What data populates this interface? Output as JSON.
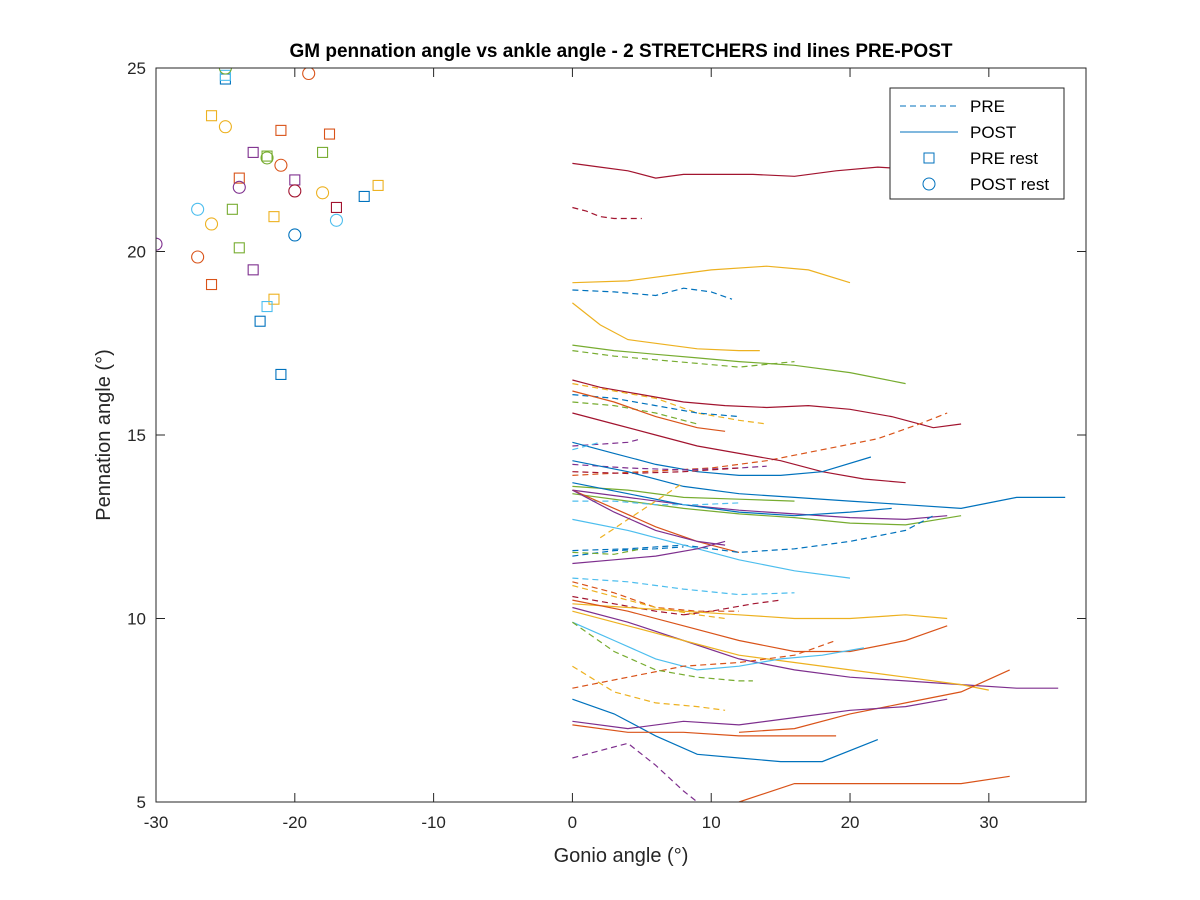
{
  "chart_data": {
    "type": "line",
    "title": "GM pennation angle vs ankle angle - 2 STRETCHERS ind lines PRE-POST",
    "xlabel": "Gonio angle (°)",
    "ylabel": "Pennation angle (°)",
    "xlim": [
      -30,
      37
    ],
    "ylim": [
      5,
      25
    ],
    "x_ticks": [
      -30,
      -20,
      -10,
      0,
      10,
      20,
      30
    ],
    "y_ticks": [
      5,
      10,
      15,
      20,
      25
    ],
    "x_tick_labels": [
      "-30",
      "-20",
      "-10",
      "0",
      "10",
      "20",
      "30"
    ],
    "y_tick_labels": [
      "5",
      "10",
      "15",
      "20",
      "25"
    ],
    "grid": false,
    "legend": {
      "placement": "top-right",
      "entries": [
        {
          "label": "PRE",
          "style": "dashed-line"
        },
        {
          "label": "POST",
          "style": "solid-line"
        },
        {
          "label": "PRE rest",
          "style": "square-marker"
        },
        {
          "label": "POST rest",
          "style": "circle-marker"
        }
      ]
    },
    "colors": {
      "blue": "#0072BD",
      "orange": "#D95319",
      "yellow": "#EDB120",
      "purple": "#7E2F8E",
      "green": "#77AC30",
      "cyan": "#4DBEEE",
      "darkred": "#A2142F"
    },
    "rest_points": {
      "pre": [
        {
          "x": -25,
          "y": 24.7,
          "c": "blue"
        },
        {
          "x": -25,
          "y": 24.8,
          "c": "cyan"
        },
        {
          "x": -26,
          "y": 23.7,
          "c": "yellow"
        },
        {
          "x": -21,
          "y": 23.3,
          "c": "orange"
        },
        {
          "x": -17.5,
          "y": 23.2,
          "c": "orange"
        },
        {
          "x": -23,
          "y": 22.7,
          "c": "purple"
        },
        {
          "x": -22,
          "y": 22.6,
          "c": "green"
        },
        {
          "x": -18,
          "y": 22.7,
          "c": "green"
        },
        {
          "x": -24,
          "y": 22.0,
          "c": "orange"
        },
        {
          "x": -20,
          "y": 21.95,
          "c": "purple"
        },
        {
          "x": -14,
          "y": 21.8,
          "c": "yellow"
        },
        {
          "x": -15,
          "y": 21.5,
          "c": "blue"
        },
        {
          "x": -17,
          "y": 21.2,
          "c": "darkred"
        },
        {
          "x": -24.5,
          "y": 21.15,
          "c": "green"
        },
        {
          "x": -21.5,
          "y": 20.95,
          "c": "yellow"
        },
        {
          "x": -24,
          "y": 20.1,
          "c": "green"
        },
        {
          "x": -23,
          "y": 19.5,
          "c": "purple"
        },
        {
          "x": -26,
          "y": 19.1,
          "c": "orange"
        },
        {
          "x": -21.5,
          "y": 18.7,
          "c": "yellow"
        },
        {
          "x": -22,
          "y": 18.5,
          "c": "cyan"
        },
        {
          "x": -22.5,
          "y": 18.1,
          "c": "blue"
        },
        {
          "x": -21,
          "y": 16.65,
          "c": "blue"
        }
      ],
      "post": [
        {
          "x": -25,
          "y": 25.0,
          "c": "green"
        },
        {
          "x": -19,
          "y": 24.85,
          "c": "orange"
        },
        {
          "x": -25,
          "y": 23.4,
          "c": "yellow"
        },
        {
          "x": -22,
          "y": 22.55,
          "c": "green"
        },
        {
          "x": -21,
          "y": 22.35,
          "c": "orange"
        },
        {
          "x": -24,
          "y": 21.75,
          "c": "purple"
        },
        {
          "x": -20,
          "y": 21.65,
          "c": "darkred"
        },
        {
          "x": -18,
          "y": 21.6,
          "c": "yellow"
        },
        {
          "x": -27,
          "y": 21.15,
          "c": "cyan"
        },
        {
          "x": -17,
          "y": 20.85,
          "c": "cyan"
        },
        {
          "x": -26,
          "y": 20.75,
          "c": "yellow"
        },
        {
          "x": -20,
          "y": 20.45,
          "c": "blue"
        },
        {
          "x": -30,
          "y": 20.2,
          "c": "purple"
        },
        {
          "x": -27,
          "y": 19.85,
          "c": "orange"
        }
      ]
    },
    "series": [
      {
        "style": "post",
        "c": "darkred",
        "x": [
          0,
          2,
          4,
          6,
          8,
          10,
          13,
          16,
          19,
          22,
          24
        ],
        "y": [
          22.4,
          22.3,
          22.2,
          22.0,
          22.1,
          22.1,
          22.1,
          22.05,
          22.2,
          22.3,
          22.25
        ]
      },
      {
        "style": "pre",
        "c": "darkred",
        "x": [
          0,
          1,
          2,
          3,
          5
        ],
        "y": [
          21.2,
          21.1,
          20.95,
          20.9,
          20.9
        ]
      },
      {
        "style": "post",
        "c": "yellow",
        "x": [
          0,
          4,
          8,
          10,
          14,
          17,
          20
        ],
        "y": [
          19.15,
          19.2,
          19.4,
          19.5,
          19.6,
          19.5,
          19.15
        ]
      },
      {
        "style": "pre",
        "c": "blue",
        "x": [
          0,
          3,
          6,
          8,
          10,
          11.5
        ],
        "y": [
          18.95,
          18.9,
          18.8,
          19.0,
          18.9,
          18.7
        ]
      },
      {
        "style": "post",
        "c": "yellow",
        "x": [
          0,
          2,
          4,
          6,
          9,
          12,
          13.5
        ],
        "y": [
          18.6,
          18.0,
          17.6,
          17.5,
          17.35,
          17.3,
          17.3
        ]
      },
      {
        "style": "post",
        "c": "green",
        "x": [
          0,
          3,
          6,
          9,
          12,
          16,
          20,
          24
        ],
        "y": [
          17.45,
          17.3,
          17.2,
          17.1,
          17.0,
          16.9,
          16.7,
          16.4
        ]
      },
      {
        "style": "pre",
        "c": "green",
        "x": [
          0,
          3,
          6,
          9,
          12,
          16
        ],
        "y": [
          17.3,
          17.15,
          17.05,
          16.95,
          16.85,
          17.0
        ]
      },
      {
        "style": "post",
        "c": "darkred",
        "x": [
          0,
          2,
          5,
          8,
          11,
          14,
          17,
          20,
          23,
          26,
          28
        ],
        "y": [
          16.5,
          16.3,
          16.1,
          15.9,
          15.8,
          15.75,
          15.8,
          15.7,
          15.5,
          15.2,
          15.3
        ]
      },
      {
        "style": "pre",
        "c": "yellow",
        "x": [
          0,
          3,
          6,
          9,
          12,
          14
        ],
        "y": [
          16.4,
          16.2,
          16.0,
          15.6,
          15.4,
          15.3
        ]
      },
      {
        "style": "pre",
        "c": "blue",
        "x": [
          0,
          3,
          6,
          9,
          12
        ],
        "y": [
          16.1,
          16.0,
          15.8,
          15.6,
          15.5
        ]
      },
      {
        "style": "pre",
        "c": "green",
        "x": [
          0,
          3,
          6,
          9
        ],
        "y": [
          15.9,
          15.8,
          15.6,
          15.3
        ]
      },
      {
        "style": "post",
        "c": "orange",
        "x": [
          0,
          3,
          6,
          9,
          11
        ],
        "y": [
          16.2,
          15.9,
          15.5,
          15.2,
          15.1
        ]
      },
      {
        "style": "pre",
        "c": "orange",
        "x": [
          0,
          5,
          10,
          14,
          18,
          22,
          25,
          27
        ],
        "y": [
          13.9,
          14.0,
          14.1,
          14.3,
          14.6,
          14.9,
          15.3,
          15.6
        ]
      },
      {
        "style": "post",
        "c": "darkred",
        "x": [
          0,
          3,
          6,
          9,
          12,
          15,
          18,
          21,
          24
        ],
        "y": [
          15.6,
          15.3,
          15.0,
          14.7,
          14.5,
          14.3,
          14.0,
          13.8,
          13.7
        ]
      },
      {
        "style": "pre",
        "c": "purple",
        "x": [
          0,
          2,
          4,
          5
        ],
        "y": [
          14.7,
          14.75,
          14.8,
          14.9
        ]
      },
      {
        "style": "post",
        "c": "blue",
        "x": [
          0,
          3,
          6,
          9,
          12,
          15,
          18,
          21.5
        ],
        "y": [
          14.8,
          14.5,
          14.2,
          14.0,
          13.9,
          13.9,
          14.0,
          14.4
        ]
      },
      {
        "style": "pre",
        "c": "cyan",
        "x": [
          0,
          1,
          2
        ],
        "y": [
          14.6,
          14.7,
          14.8
        ]
      },
      {
        "style": "pre",
        "c": "purple",
        "x": [
          0,
          4,
          8,
          12,
          14
        ],
        "y": [
          14.2,
          14.1,
          14.05,
          14.1,
          14.15
        ]
      },
      {
        "style": "pre",
        "c": "darkred",
        "x": [
          0,
          4,
          8,
          12
        ],
        "y": [
          14.0,
          13.95,
          14.0,
          14.1
        ]
      },
      {
        "style": "post",
        "c": "blue",
        "x": [
          0,
          4,
          8,
          12,
          16,
          20,
          24,
          28,
          32,
          35.5
        ],
        "y": [
          14.3,
          14.0,
          13.6,
          13.4,
          13.3,
          13.2,
          13.1,
          13.0,
          13.3,
          13.3
        ]
      },
      {
        "style": "post",
        "c": "green",
        "x": [
          0,
          4,
          8,
          12,
          16
        ],
        "y": [
          13.6,
          13.5,
          13.3,
          13.25,
          13.2
        ]
      },
      {
        "style": "post",
        "c": "purple",
        "x": [
          0,
          4,
          8,
          12,
          16,
          20,
          24,
          27
        ],
        "y": [
          13.5,
          13.3,
          13.1,
          12.95,
          12.85,
          12.75,
          12.7,
          12.8
        ]
      },
      {
        "style": "post",
        "c": "blue",
        "x": [
          0,
          4,
          8,
          12,
          16,
          20,
          23
        ],
        "y": [
          13.7,
          13.4,
          13.1,
          12.9,
          12.8,
          12.9,
          13.0
        ]
      },
      {
        "style": "post",
        "c": "green",
        "x": [
          0,
          4,
          8,
          12,
          16,
          20,
          24,
          28
        ],
        "y": [
          13.4,
          13.2,
          13.0,
          12.85,
          12.75,
          12.6,
          12.55,
          12.8
        ]
      },
      {
        "style": "pre",
        "c": "cyan",
        "x": [
          0,
          3,
          6,
          9,
          12
        ],
        "y": [
          13.2,
          13.2,
          13.1,
          13.1,
          13.15
        ]
      },
      {
        "style": "pre",
        "c": "yellow",
        "x": [
          2,
          4,
          6,
          8
        ],
        "y": [
          12.2,
          12.7,
          13.2,
          13.7
        ]
      },
      {
        "style": "post",
        "c": "orange",
        "x": [
          0,
          3,
          6,
          9,
          12
        ],
        "y": [
          13.5,
          13.0,
          12.5,
          12.1,
          11.8
        ]
      },
      {
        "style": "post",
        "c": "purple",
        "x": [
          0,
          3,
          6,
          9,
          11
        ],
        "y": [
          13.5,
          12.9,
          12.4,
          12.1,
          12.0
        ]
      },
      {
        "style": "pre",
        "c": "blue",
        "x": [
          0,
          4,
          8,
          12,
          16,
          20,
          24,
          26
        ],
        "y": [
          11.85,
          11.9,
          12.0,
          11.8,
          11.9,
          12.1,
          12.4,
          12.8
        ]
      },
      {
        "style": "pre",
        "c": "blue",
        "x": [
          0,
          3,
          6,
          8
        ],
        "y": [
          11.7,
          11.85,
          11.9,
          11.95
        ]
      },
      {
        "style": "pre",
        "c": "green",
        "x": [
          0,
          3,
          5
        ],
        "y": [
          11.8,
          11.75,
          11.9
        ]
      },
      {
        "style": "post",
        "c": "cyan",
        "x": [
          0,
          4,
          8,
          12,
          16,
          20
        ],
        "y": [
          12.7,
          12.4,
          12.0,
          11.6,
          11.3,
          11.1
        ]
      },
      {
        "style": "post",
        "c": "purple",
        "x": [
          0,
          3,
          6,
          9,
          11
        ],
        "y": [
          11.5,
          11.6,
          11.7,
          11.9,
          12.1
        ]
      },
      {
        "style": "pre",
        "c": "cyan",
        "x": [
          0,
          4,
          8,
          12,
          16
        ],
        "y": [
          11.1,
          11.0,
          10.8,
          10.65,
          10.7
        ]
      },
      {
        "style": "pre",
        "c": "orange",
        "x": [
          0,
          3,
          6,
          9,
          12
        ],
        "y": [
          11.0,
          10.7,
          10.3,
          10.2,
          10.2
        ]
      },
      {
        "style": "pre",
        "c": "darkred",
        "x": [
          0,
          3,
          6,
          8
        ],
        "y": [
          10.6,
          10.4,
          10.2,
          10.1
        ]
      },
      {
        "style": "pre",
        "c": "yellow",
        "x": [
          0,
          3,
          6,
          9,
          11
        ],
        "y": [
          10.9,
          10.6,
          10.3,
          10.1,
          10.0
        ]
      },
      {
        "style": "pre",
        "c": "darkred",
        "x": [
          8,
          10,
          13,
          15
        ],
        "y": [
          10.1,
          10.2,
          10.4,
          10.5
        ]
      },
      {
        "style": "post",
        "c": "yellow",
        "x": [
          0,
          4,
          8,
          12,
          16,
          20,
          24,
          27
        ],
        "y": [
          10.4,
          10.3,
          10.2,
          10.1,
          10.0,
          10.0,
          10.1,
          10.0
        ]
      },
      {
        "style": "post",
        "c": "orange",
        "x": [
          0,
          4,
          8,
          12,
          16,
          20,
          24,
          27
        ],
        "y": [
          10.5,
          10.2,
          9.8,
          9.4,
          9.1,
          9.1,
          9.4,
          9.8
        ]
      },
      {
        "style": "post",
        "c": "purple",
        "x": [
          0,
          4,
          8,
          12,
          16,
          20,
          24,
          28,
          32,
          35
        ],
        "y": [
          10.3,
          9.9,
          9.4,
          8.9,
          8.6,
          8.4,
          8.3,
          8.2,
          8.1,
          8.1
        ]
      },
      {
        "style": "post",
        "c": "yellow",
        "x": [
          0,
          4,
          8,
          12,
          16,
          20,
          24,
          28,
          30
        ],
        "y": [
          10.2,
          9.8,
          9.4,
          9.0,
          8.8,
          8.6,
          8.4,
          8.2,
          8.05
        ]
      },
      {
        "style": "post",
        "c": "cyan",
        "x": [
          0,
          3,
          6,
          9,
          12,
          15,
          18,
          21
        ],
        "y": [
          9.9,
          9.4,
          8.9,
          8.6,
          8.7,
          8.9,
          9.0,
          9.2
        ]
      },
      {
        "style": "pre",
        "c": "orange",
        "x": [
          0,
          4,
          8,
          12,
          16,
          19
        ],
        "y": [
          8.1,
          8.4,
          8.7,
          8.8,
          9.0,
          9.4
        ]
      },
      {
        "style": "pre",
        "c": "green",
        "x": [
          0,
          3,
          6,
          9,
          12,
          13
        ],
        "y": [
          9.9,
          9.1,
          8.6,
          8.4,
          8.3,
          8.3
        ]
      },
      {
        "style": "pre",
        "c": "yellow",
        "x": [
          0,
          3,
          6,
          9,
          11
        ],
        "y": [
          8.7,
          8.0,
          7.7,
          7.6,
          7.5
        ]
      },
      {
        "style": "post",
        "c": "orange",
        "x": [
          12,
          16,
          20,
          24,
          28,
          31.5
        ],
        "y": [
          6.9,
          7.0,
          7.4,
          7.7,
          8.0,
          8.6
        ]
      },
      {
        "style": "post",
        "c": "blue",
        "x": [
          0,
          3,
          6,
          9,
          12,
          15,
          18,
          22
        ],
        "y": [
          7.8,
          7.4,
          6.8,
          6.3,
          6.2,
          6.1,
          6.1,
          6.7
        ]
      },
      {
        "style": "post",
        "c": "purple",
        "x": [
          0,
          4,
          8,
          12,
          16,
          20,
          24,
          27
        ],
        "y": [
          7.2,
          7.0,
          7.2,
          7.1,
          7.3,
          7.5,
          7.6,
          7.8
        ]
      },
      {
        "style": "post",
        "c": "orange",
        "x": [
          0,
          4,
          8,
          12,
          16,
          19
        ],
        "y": [
          7.1,
          6.9,
          6.9,
          6.8,
          6.8,
          6.8
        ]
      },
      {
        "style": "pre",
        "c": "purple",
        "x": [
          0,
          2,
          4,
          6,
          8,
          9
        ],
        "y": [
          6.2,
          6.4,
          6.6,
          6.0,
          5.3,
          5.0
        ]
      },
      {
        "style": "post",
        "c": "orange",
        "x": [
          12,
          16,
          20,
          24,
          28,
          31.5
        ],
        "y": [
          5.0,
          5.5,
          5.5,
          5.5,
          5.5,
          5.7
        ]
      }
    ]
  }
}
